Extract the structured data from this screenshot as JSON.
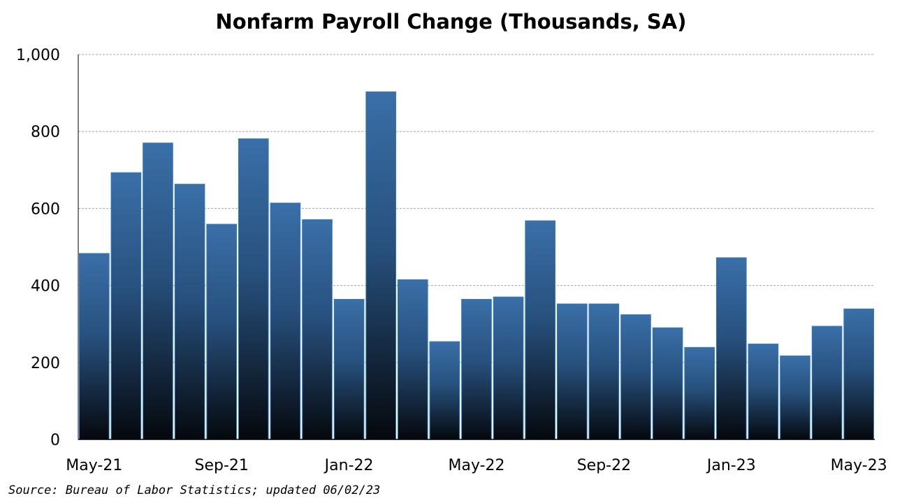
{
  "chart_data": {
    "type": "bar",
    "title": "Nonfarm Payroll Change (Thousands, SA)",
    "xlabel": "",
    "ylabel": "",
    "ylim": [
      0,
      1000
    ],
    "yticks": [
      0,
      200,
      400,
      600,
      800,
      1000
    ],
    "ytick_labels": [
      "0",
      "200",
      "400",
      "600",
      "800",
      "1,000"
    ],
    "grid": "horizontal dashed",
    "categories": [
      "May-21",
      "Jun-21",
      "Jul-21",
      "Aug-21",
      "Sep-21",
      "Oct-21",
      "Nov-21",
      "Dec-21",
      "Jan-22",
      "Feb-22",
      "Mar-22",
      "Apr-22",
      "May-22",
      "Jun-22",
      "Jul-22",
      "Aug-22",
      "Sep-22",
      "Oct-22",
      "Nov-22",
      "Dec-22",
      "Jan-23",
      "Feb-23",
      "Mar-23",
      "Apr-23",
      "May-23"
    ],
    "values": [
      483,
      693,
      770,
      663,
      559,
      781,
      614,
      571,
      364,
      903,
      415,
      254,
      364,
      370,
      568,
      352,
      352,
      324,
      290,
      239,
      472,
      248,
      217,
      294,
      339
    ],
    "xtick_labels": [
      {
        "index": 0,
        "label": "May-21"
      },
      {
        "index": 4,
        "label": "Sep-21"
      },
      {
        "index": 8,
        "label": "Jan-22"
      },
      {
        "index": 12,
        "label": "May-22"
      },
      {
        "index": 16,
        "label": "Sep-22"
      },
      {
        "index": 20,
        "label": "Jan-23"
      },
      {
        "index": 24,
        "label": "May-23"
      }
    ],
    "colors": {
      "bar_top": "#3a6fa8",
      "bar_bottom": "#05080d",
      "bar_edge": "#2c78c4",
      "grid": "#a6a6a6",
      "axis": "#000000"
    }
  },
  "footer": {
    "source": "Source: Bureau of Labor Statistics; updated 06/02/23"
  }
}
